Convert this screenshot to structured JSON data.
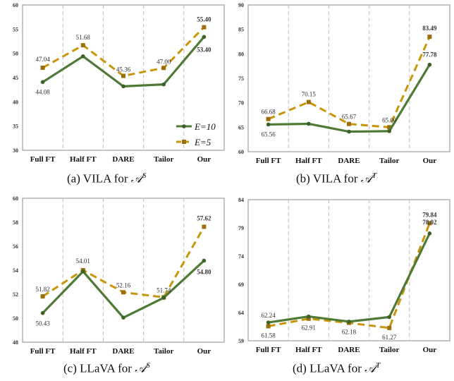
{
  "colors": {
    "e10": "#4f7a35",
    "e5": "#c8960a",
    "grid": "#bdbdbd",
    "axis": "#8c8c8c"
  },
  "legend": {
    "e10_label": "E=10",
    "e5_label": "E=5"
  },
  "captions": [
    {
      "prefix": "(a) VILA for ",
      "symbol": "𝒜",
      "sup": "S"
    },
    {
      "prefix": "(b) VILA for ",
      "symbol": "𝒜",
      "sup": "T"
    },
    {
      "prefix": "(c) LLaVA for ",
      "symbol": "𝒜",
      "sup": "S"
    },
    {
      "prefix": "(d) LLaVA for ",
      "symbol": "𝒜",
      "sup": "T"
    }
  ],
  "chart_data": [
    {
      "type": "line",
      "categories": [
        "Full FT",
        "Half FT",
        "DARE",
        "Tailor",
        "Our"
      ],
      "ylim": [
        30,
        60
      ],
      "yticks": [
        "30",
        "35",
        "40",
        "45",
        "50",
        "55",
        "60"
      ],
      "legend_position": "bottom-right",
      "series": [
        {
          "name": "E=10",
          "values": [
            44.08,
            49.4,
            43.2,
            43.6,
            53.4
          ],
          "labels": [
            "44.08",
            "",
            "",
            "",
            "53.40"
          ]
        },
        {
          "name": "E=5",
          "values": [
            47.04,
            51.68,
            45.36,
            47.0,
            55.4
          ],
          "labels": [
            "47.04",
            "51.68",
            "45.36",
            "47.00",
            "55.40"
          ]
        }
      ]
    },
    {
      "type": "line",
      "categories": [
        "Full FT",
        "Half FT",
        "DARE",
        "Tailor",
        "Our"
      ],
      "ylim": [
        60,
        90
      ],
      "yticks": [
        "60",
        "65",
        "70",
        "75",
        "80",
        "85",
        "90"
      ],
      "series": [
        {
          "name": "E=10",
          "values": [
            65.56,
            65.7,
            64.1,
            64.2,
            77.78
          ],
          "labels": [
            "65.56",
            "",
            "",
            "",
            "77.78"
          ]
        },
        {
          "name": "E=5",
          "values": [
            66.68,
            70.15,
            65.67,
            65.0,
            83.49
          ],
          "labels": [
            "66.68",
            "70.15",
            "65.67",
            "65.00",
            "83.49"
          ]
        }
      ]
    },
    {
      "type": "line",
      "categories": [
        "Full FT",
        "Half FT",
        "DARE",
        "Tailor",
        "Our"
      ],
      "ylim": [
        48,
        60
      ],
      "yticks": [
        "48",
        "50",
        "52",
        "54",
        "56",
        "58",
        "60"
      ],
      "series": [
        {
          "name": "E=10",
          "values": [
            50.43,
            53.9,
            50.05,
            51.7,
            54.8
          ],
          "labels": [
            "50.43",
            "",
            "",
            "",
            "54.80"
          ]
        },
        {
          "name": "E=5",
          "values": [
            51.82,
            54.01,
            52.16,
            51.74,
            57.62
          ],
          "labels": [
            "51.82",
            "54.01",
            "52.16",
            "51.74",
            "57.62"
          ]
        }
      ]
    },
    {
      "type": "line",
      "categories": [
        "Full FT",
        "Half FT",
        "DARE",
        "Tailor",
        "Our"
      ],
      "ylim": [
        59,
        84
      ],
      "yticks": [
        "59",
        "64",
        "69",
        "74",
        "79",
        "84"
      ],
      "series": [
        {
          "name": "E=10",
          "values": [
            62.24,
            63.3,
            62.4,
            63.2,
            78.02
          ],
          "labels": [
            "62.24",
            "",
            "",
            "",
            "78.02"
          ]
        },
        {
          "name": "E=5",
          "values": [
            61.58,
            62.91,
            62.18,
            61.27,
            79.84
          ],
          "labels": [
            "61.58",
            "62.91",
            "62.18",
            "61.27",
            "79.84"
          ]
        }
      ]
    }
  ]
}
